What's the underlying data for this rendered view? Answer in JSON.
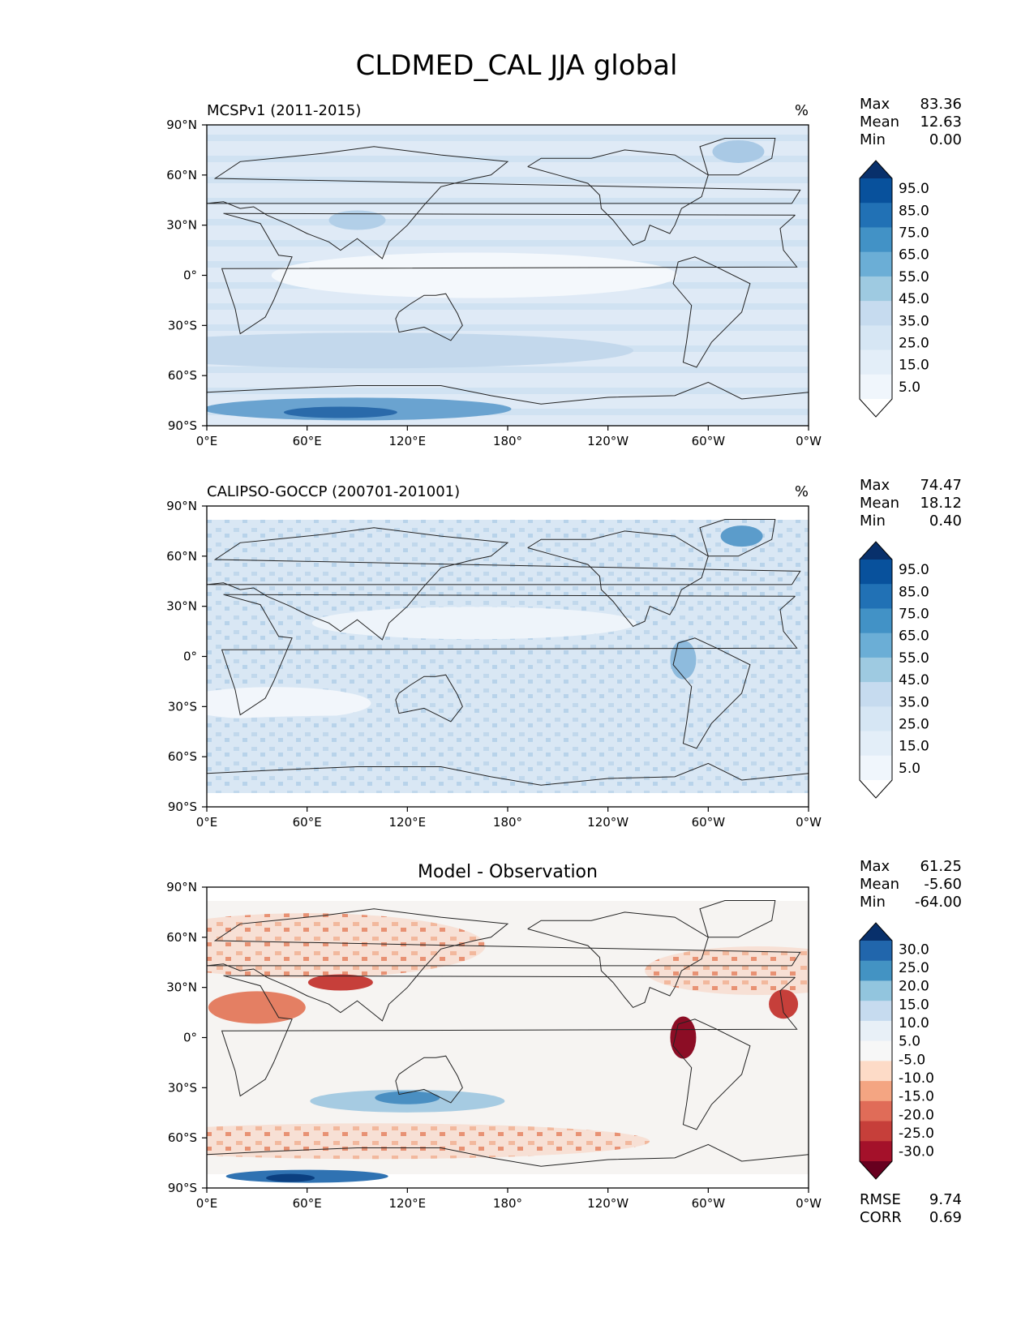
{
  "figure": {
    "title": "CLDMED_CAL JJA global"
  },
  "chart_data": [
    {
      "type": "heatmap",
      "subtitle": "MCSPv1 (2011-2015)",
      "units": "%",
      "stats": [
        {
          "name": "Max",
          "value": "83.36"
        },
        {
          "name": "Mean",
          "value": "12.63"
        },
        {
          "name": "Min",
          "value": "0.00"
        }
      ],
      "colorbar": {
        "labels": [
          "95.0",
          "85.0",
          "75.0",
          "65.0",
          "55.0",
          "45.0",
          "35.0",
          "25.0",
          "15.0",
          "5.0"
        ],
        "colors": [
          "#08306b",
          "#08519c",
          "#2171b5",
          "#4292c6",
          "#6baed6",
          "#9ecae1",
          "#c6dbef",
          "#d6e6f4",
          "#e3eef8",
          "#f0f6fc",
          "#ffffff"
        ]
      },
      "xticks": [
        "0°E",
        "60°E",
        "120°E",
        "180°",
        "120°W",
        "60°W",
        "0°W"
      ],
      "yticks": [
        "90°N",
        "60°N",
        "30°N",
        "0°",
        "30°S",
        "60°S",
        "90°S"
      ],
      "xlim": [
        0,
        360
      ],
      "ylim": [
        -90,
        90
      ]
    },
    {
      "type": "heatmap",
      "subtitle": "CALIPSO-GOCCP (200701-201001)",
      "units": "%",
      "stats": [
        {
          "name": "Max",
          "value": "74.47"
        },
        {
          "name": "Mean",
          "value": "18.12"
        },
        {
          "name": "Min",
          "value": "0.40"
        }
      ],
      "colorbar": {
        "labels": [
          "95.0",
          "85.0",
          "75.0",
          "65.0",
          "55.0",
          "45.0",
          "35.0",
          "25.0",
          "15.0",
          "5.0"
        ],
        "colors": [
          "#08306b",
          "#08519c",
          "#2171b5",
          "#4292c6",
          "#6baed6",
          "#9ecae1",
          "#c6dbef",
          "#d6e6f4",
          "#e3eef8",
          "#f0f6fc",
          "#ffffff"
        ]
      },
      "xticks": [
        "0°E",
        "60°E",
        "120°E",
        "180°",
        "120°W",
        "60°W",
        "0°W"
      ],
      "yticks": [
        "90°N",
        "60°N",
        "30°N",
        "0°",
        "30°S",
        "60°S",
        "90°S"
      ],
      "xlim": [
        0,
        360
      ],
      "ylim": [
        -90,
        90
      ]
    },
    {
      "type": "heatmap",
      "subtitle": "Model - Observation",
      "units": "",
      "stats": [
        {
          "name": "Max",
          "value": "61.25"
        },
        {
          "name": "Mean",
          "value": "-5.60"
        },
        {
          "name": "Min",
          "value": "-64.00"
        }
      ],
      "colorbar": {
        "labels": [
          "30.0",
          "25.0",
          "20.0",
          "15.0",
          "10.0",
          "5.0",
          "-5.0",
          "-10.0",
          "-15.0",
          "-20.0",
          "-25.0",
          "-30.0"
        ],
        "colors": [
          "#08306b",
          "#2166ac",
          "#4393c3",
          "#92c5de",
          "#c6dbef",
          "#e8f0f7",
          "#f7f7f7",
          "#fddbc7",
          "#f4a582",
          "#e06c58",
          "#c63f3a",
          "#a4112a",
          "#67001f"
        ]
      },
      "extra_stats": [
        {
          "name": "RMSE",
          "value": "9.74"
        },
        {
          "name": "CORR",
          "value": "0.69"
        }
      ],
      "xticks": [
        "0°E",
        "60°E",
        "120°E",
        "180°",
        "120°W",
        "60°W",
        "0°W"
      ],
      "yticks": [
        "90°N",
        "60°N",
        "30°N",
        "0°",
        "30°S",
        "60°S",
        "90°S"
      ],
      "xlim": [
        0,
        360
      ],
      "ylim": [
        -90,
        90
      ]
    }
  ]
}
